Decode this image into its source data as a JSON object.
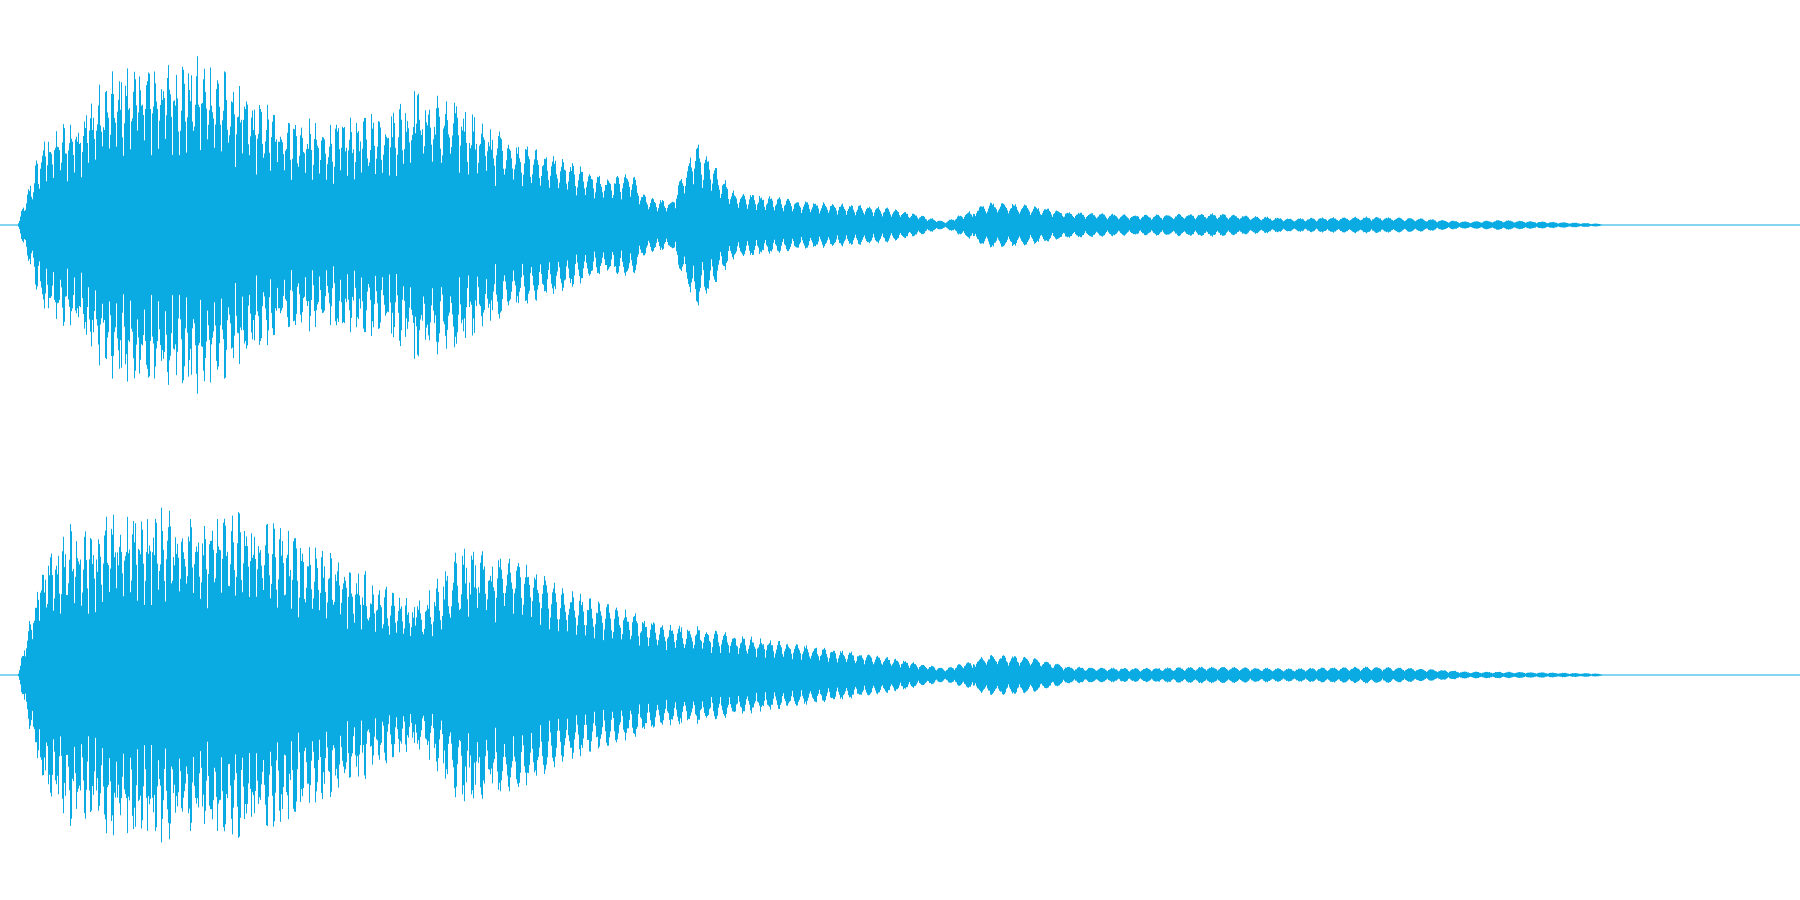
{
  "chart_data": {
    "type": "area",
    "chart": "audio waveform",
    "channels": 2,
    "color": "#0aabe3",
    "grid": false,
    "legend": "none",
    "ylim": [
      -1,
      1
    ],
    "time_range": [
      0,
      1
    ],
    "envelope_points": [
      0,
      0.016,
      0.033,
      0.055,
      0.075,
      0.095,
      0.12,
      0.15,
      0.19,
      0.235,
      0.25,
      0.28,
      0.31,
      0.34,
      0.37,
      0.385,
      0.393,
      0.41,
      0.425,
      0.45,
      0.5,
      0.55,
      0.582,
      0.61,
      0.635,
      0.66,
      0.7,
      0.75,
      0.8,
      0.85,
      0.88,
      0.91,
      0.93,
      0.99,
      1.0
    ],
    "series": [
      {
        "channel": 1,
        "peaks": [
          0.02,
          0.55,
          0.65,
          0.88,
          1.0,
          1.0,
          1.0,
          0.75,
          0.6,
          0.72,
          0.82,
          0.74,
          0.5,
          0.4,
          0.28,
          0.32,
          0.18,
          0.14,
          0.5,
          0.2,
          0.14,
          0.1,
          0.02,
          0.14,
          0.12,
          0.08,
          0.06,
          0.07,
          0.04,
          0.05,
          0.04,
          0.02,
          0.03,
          0.01,
          0.0
        ]
      },
      {
        "channel": 2,
        "peaks": [
          0.02,
          0.75,
          0.9,
          0.95,
          1.0,
          1.0,
          1.0,
          0.96,
          0.8,
          0.5,
          0.45,
          0.78,
          0.72,
          0.52,
          0.42,
          0.38,
          0.34,
          0.3,
          0.29,
          0.24,
          0.17,
          0.1,
          0.04,
          0.12,
          0.11,
          0.05,
          0.04,
          0.05,
          0.04,
          0.05,
          0.04,
          0.02,
          0.02,
          0.01,
          0.0
        ]
      }
    ]
  }
}
